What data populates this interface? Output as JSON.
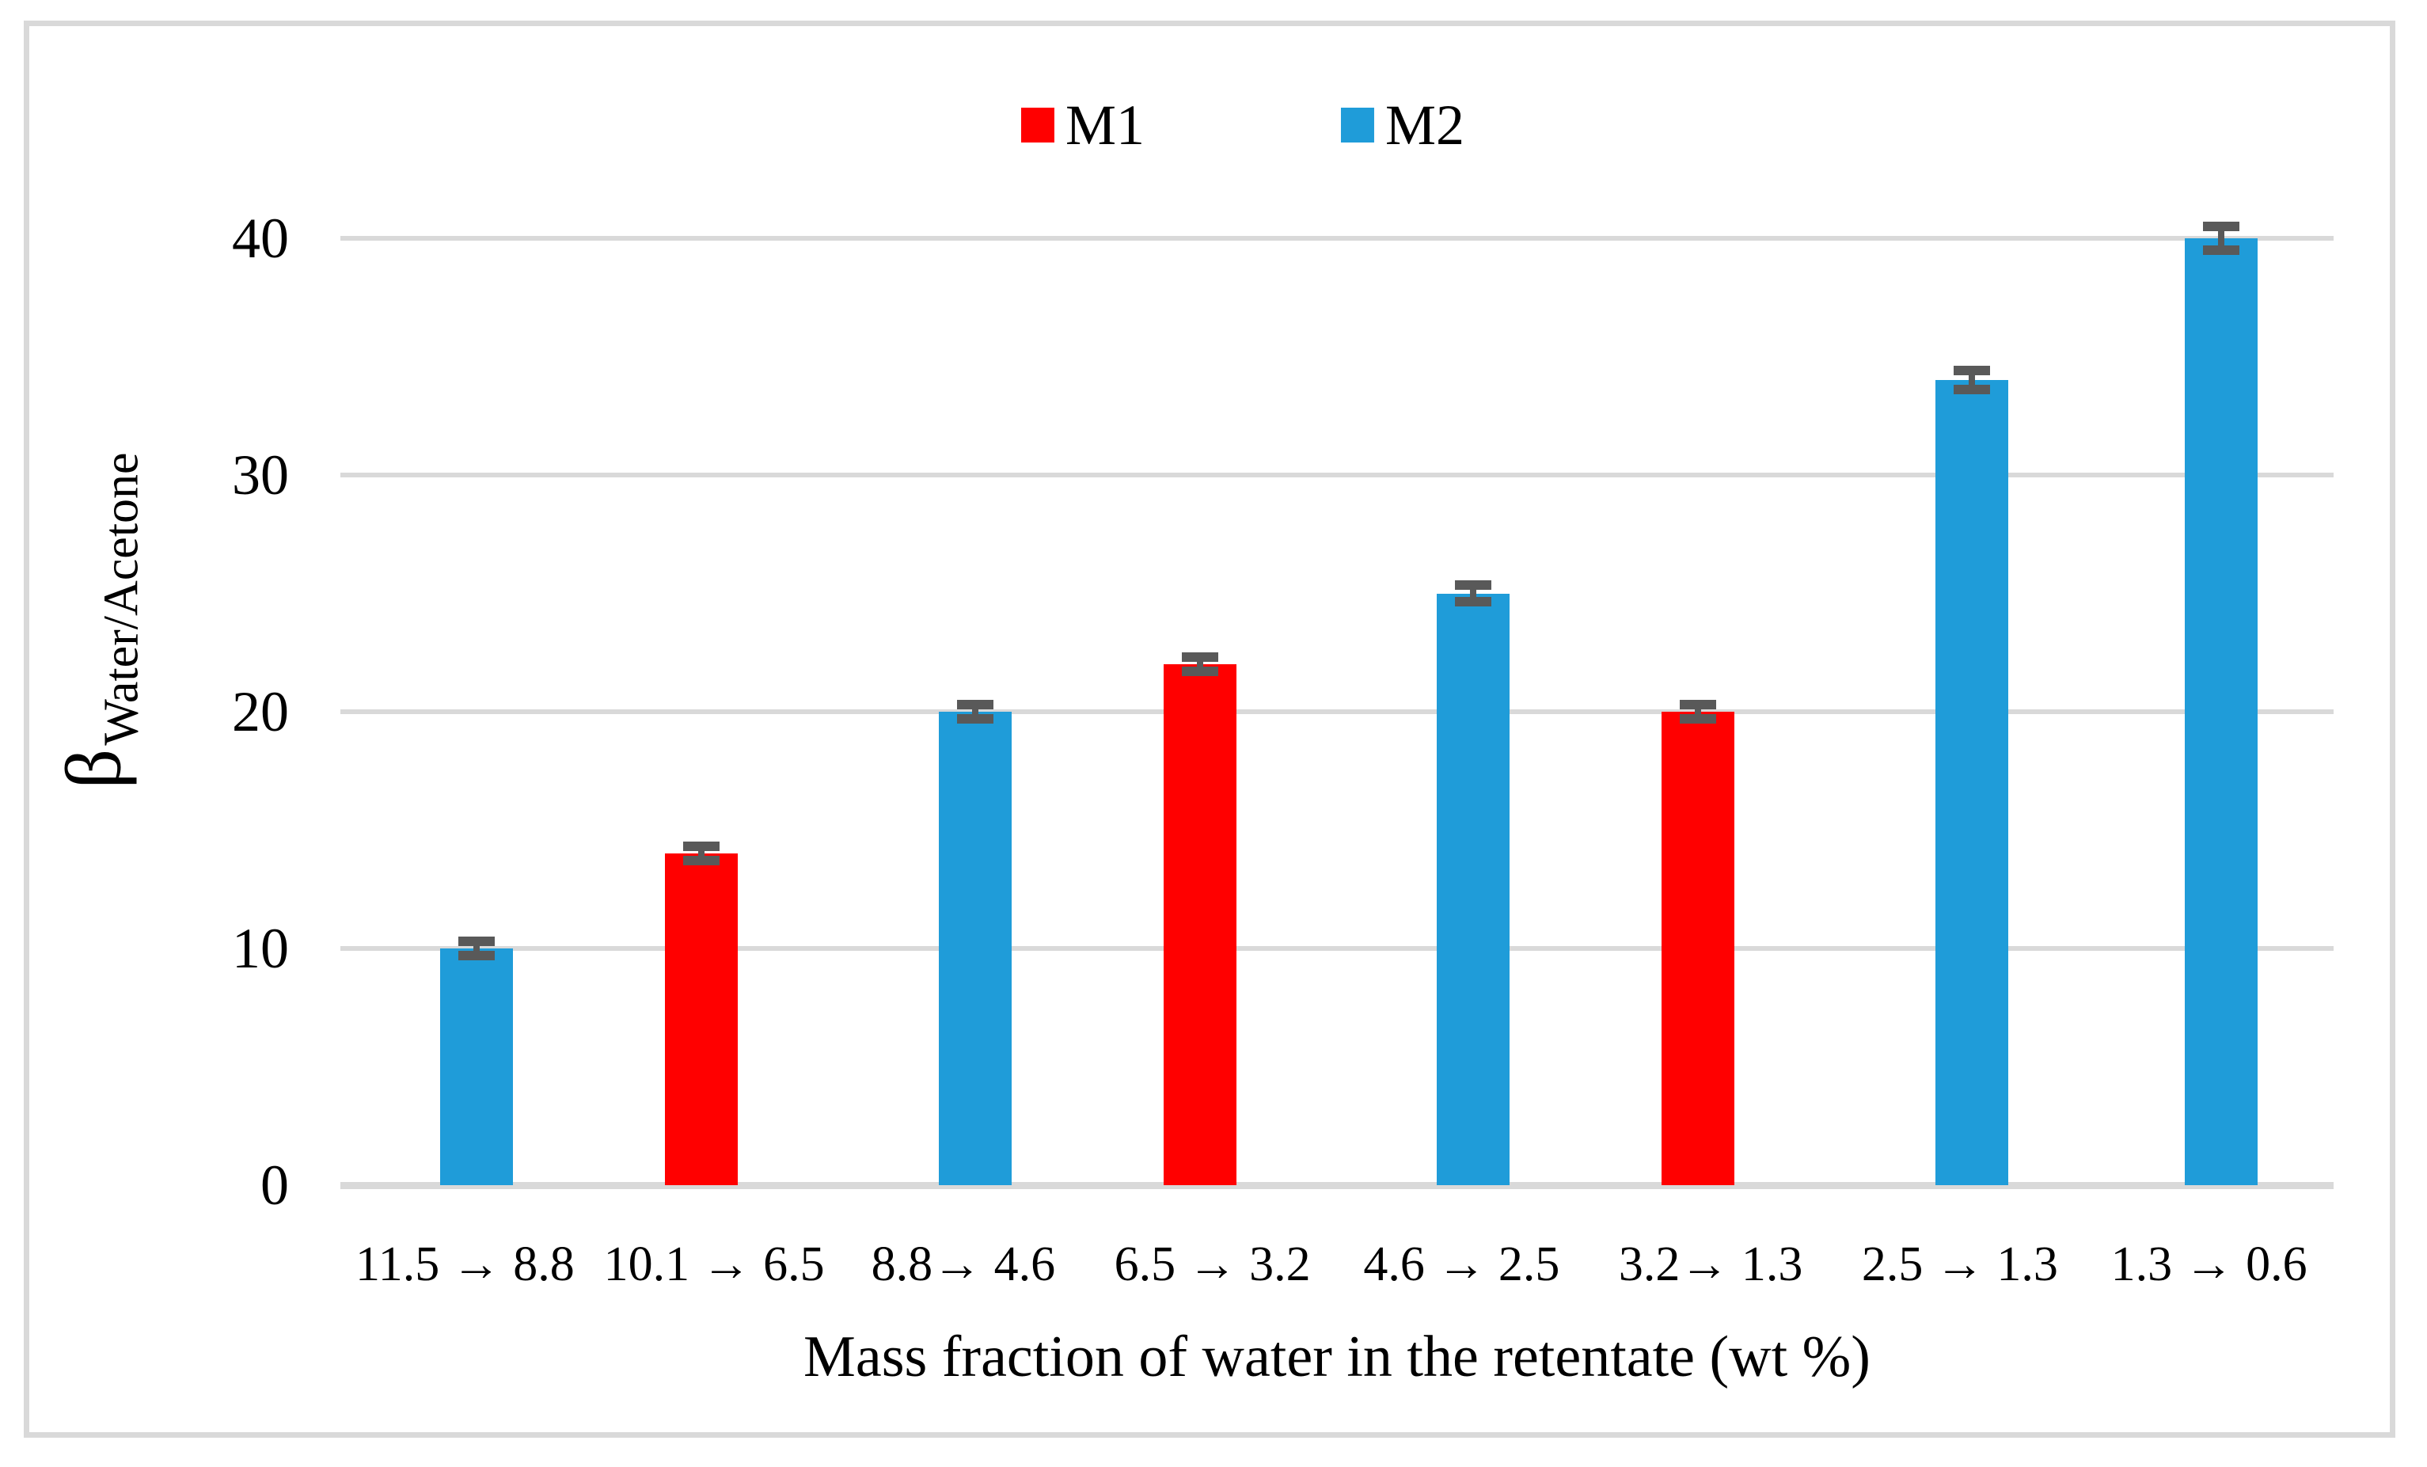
{
  "figure": {
    "background": "#FFFFFF",
    "border_color": "#D9D9D9"
  },
  "chart_data": {
    "type": "bar",
    "title": "",
    "xlabel": "Mass fraction of water in the retentate (wt %)",
    "ylabel_symbol": "β",
    "ylabel_subscript": "Water/Acetone",
    "categories": [
      "11.5 → 8.8",
      "10.1 → 6.5",
      "8.8→ 4.6",
      "6.5 → 3.2",
      "4.6 → 2.5",
      "3.2→ 1.3",
      "2.5 → 1.3",
      "1.3 → 0.6"
    ],
    "series": [
      {
        "name": "M1",
        "color": "#FF0000",
        "values": [
          null,
          14,
          null,
          22,
          null,
          20,
          null,
          null
        ]
      },
      {
        "name": "M2",
        "color": "#1F9CD9",
        "values": [
          10,
          null,
          20,
          null,
          25,
          null,
          34,
          40
        ]
      }
    ],
    "errors": [
      0.3,
      0.3,
      0.3,
      0.3,
      0.35,
      0.3,
      0.4,
      0.5
    ],
    "error_color": "#595959",
    "ylim": [
      0,
      40
    ],
    "yticks": [
      0,
      10,
      20,
      30,
      40
    ],
    "gridline_color": "#D9D9D9",
    "grid": "horizontal",
    "legend_position": "top-center"
  }
}
